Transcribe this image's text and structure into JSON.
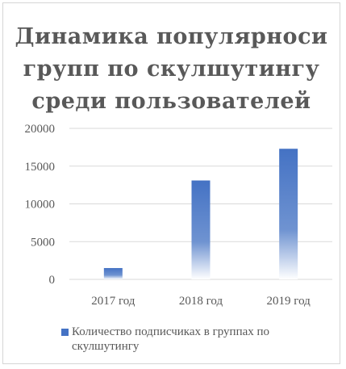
{
  "chart_data": {
    "type": "bar",
    "title_lines": [
      "Динамика популярноси",
      "групп по скулшутингу",
      "среди пользователей"
    ],
    "categories": [
      "2017 год",
      "2018 год",
      "2019 год"
    ],
    "series": [
      {
        "name": "Количество подписчиках в группах по скулшутингу",
        "values": [
          1500,
          13100,
          17300
        ]
      }
    ],
    "y_ticks": [
      0,
      5000,
      10000,
      15000,
      20000
    ],
    "ylim": [
      0,
      20000
    ],
    "grid": true,
    "legend_position": "bottom",
    "colors": {
      "bar": "#4472c4",
      "grid": "#d9d9d9",
      "text": "#595959"
    }
  }
}
